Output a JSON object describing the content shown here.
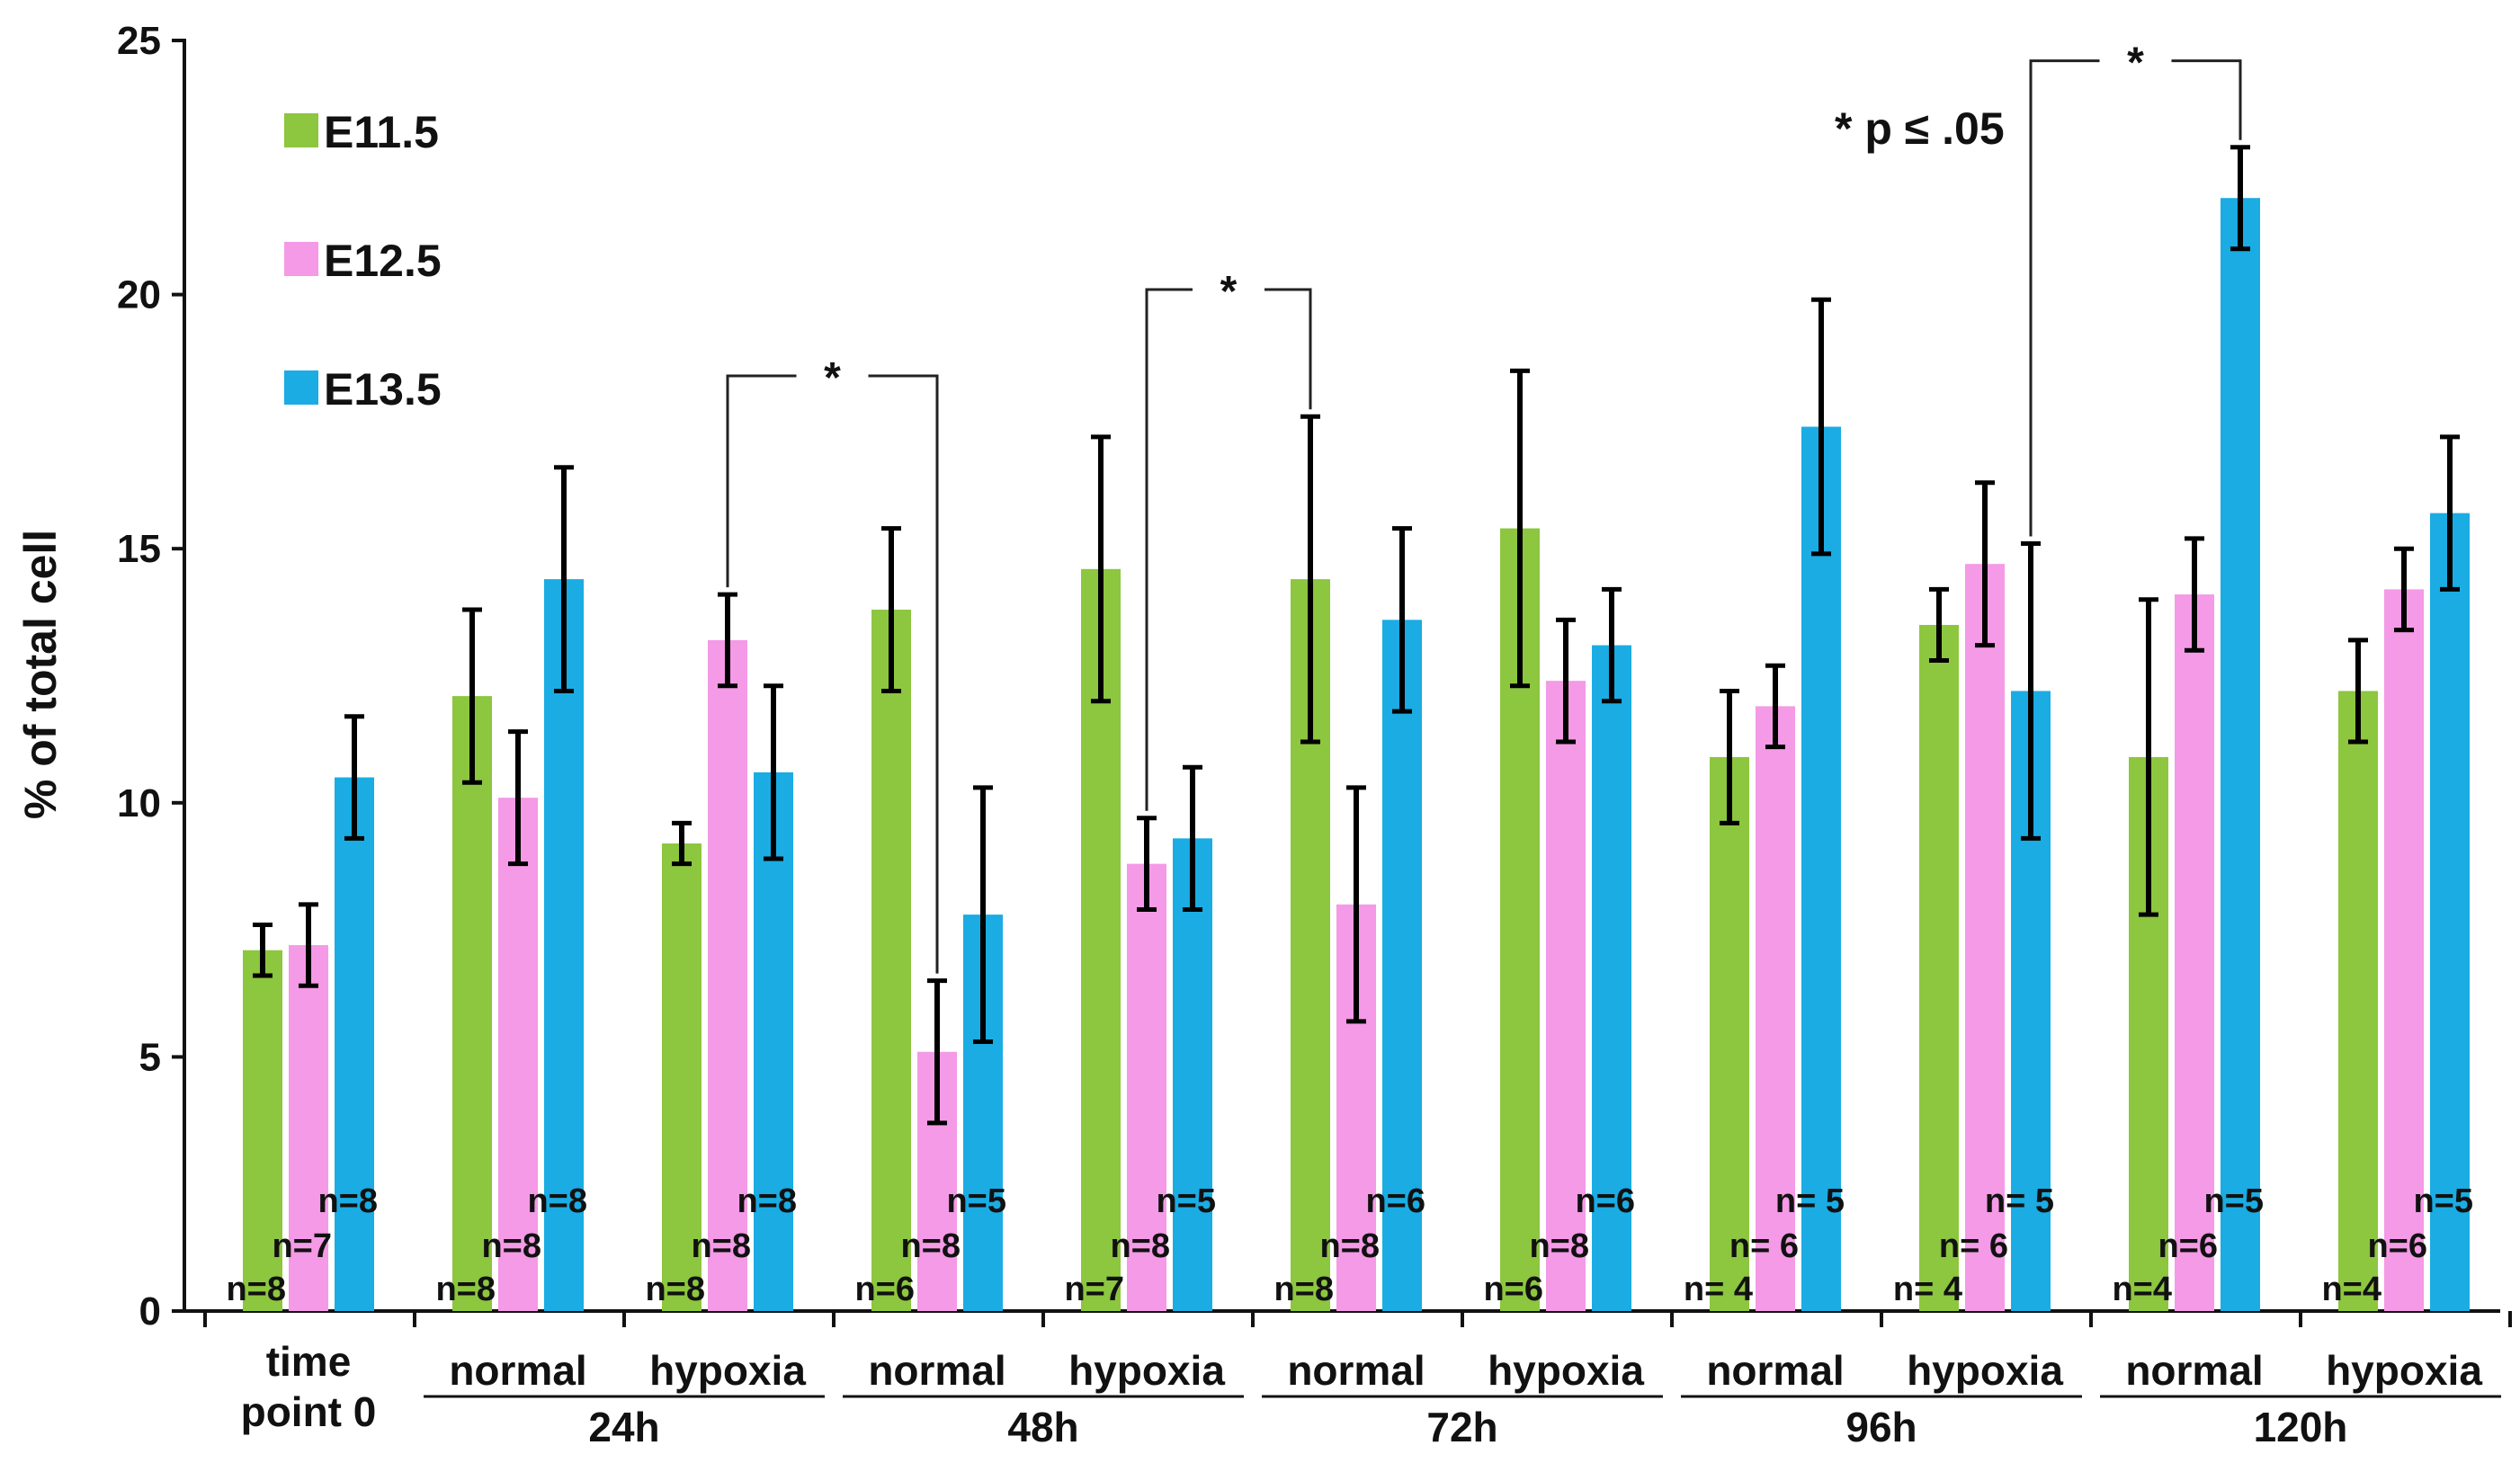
{
  "chart_data": {
    "type": "bar",
    "ylabel": "% of total cell",
    "ylim": [
      0,
      25
    ],
    "yticks": [
      "0",
      "5",
      "10",
      "15",
      "20",
      "25"
    ],
    "series_names": [
      "E11.5",
      "E12.5",
      "E13.5"
    ],
    "colors": {
      "E11.5": "#8dc63f",
      "E12.5": "#f49ae6",
      "E13.5": "#1aace3",
      "axis": "#111111"
    },
    "groups": [
      {
        "time": "",
        "conditions": [
          {
            "label_lines": [
              "time",
              "point 0"
            ],
            "values": [
              7.1,
              7.2,
              10.5
            ],
            "errors": [
              0.5,
              0.8,
              1.2
            ],
            "n": [
              "n=8",
              "n=7",
              "n=8"
            ]
          }
        ]
      },
      {
        "time": "24h",
        "conditions": [
          {
            "label_lines": [
              "normal"
            ],
            "values": [
              12.1,
              10.1,
              14.4
            ],
            "errors": [
              1.7,
              1.3,
              2.2
            ],
            "n": [
              "n=8",
              "n=8",
              "n=8"
            ]
          },
          {
            "label_lines": [
              "hypoxia"
            ],
            "values": [
              9.2,
              13.2,
              10.6
            ],
            "errors": [
              0.4,
              0.9,
              1.7
            ],
            "n": [
              "n=8",
              "n=8",
              "n=8"
            ]
          }
        ]
      },
      {
        "time": "48h",
        "conditions": [
          {
            "label_lines": [
              "normal"
            ],
            "values": [
              13.8,
              5.1,
              7.8
            ],
            "errors": [
              1.6,
              1.4,
              2.5
            ],
            "n": [
              "n=6",
              "n=8",
              "n=5"
            ]
          },
          {
            "label_lines": [
              "hypoxia"
            ],
            "values": [
              14.6,
              8.8,
              9.3
            ],
            "errors": [
              2.6,
              0.9,
              1.4
            ],
            "n": [
              "n=7",
              "n=8",
              "n=5"
            ]
          }
        ]
      },
      {
        "time": "72h",
        "conditions": [
          {
            "label_lines": [
              "normal"
            ],
            "values": [
              14.4,
              8.0,
              13.6
            ],
            "errors": [
              3.2,
              2.3,
              1.8
            ],
            "n": [
              "n=8",
              "n=8",
              "n=6"
            ]
          },
          {
            "label_lines": [
              "hypoxia"
            ],
            "values": [
              15.4,
              12.4,
              13.1
            ],
            "errors": [
              3.1,
              1.2,
              1.1
            ],
            "n": [
              "n=6",
              "n=8",
              "n=6"
            ]
          }
        ]
      },
      {
        "time": "96h",
        "conditions": [
          {
            "label_lines": [
              "normal"
            ],
            "values": [
              10.9,
              11.9,
              17.4
            ],
            "errors": [
              1.3,
              0.8,
              2.5
            ],
            "n": [
              "n= 4",
              "n= 6",
              "n= 5"
            ]
          },
          {
            "label_lines": [
              "hypoxia"
            ],
            "values": [
              13.5,
              14.7,
              12.2
            ],
            "errors": [
              0.7,
              1.6,
              2.9
            ],
            "n": [
              "n= 4",
              "n= 6",
              "n= 5"
            ]
          }
        ]
      },
      {
        "time": "120h",
        "conditions": [
          {
            "label_lines": [
              "normal"
            ],
            "values": [
              10.9,
              14.1,
              21.9
            ],
            "errors": [
              3.1,
              1.1,
              1.0
            ],
            "n": [
              "n=4",
              "n=6",
              "n=5"
            ]
          },
          {
            "label_lines": [
              "hypoxia"
            ],
            "values": [
              12.2,
              14.2,
              15.7
            ],
            "errors": [
              1.0,
              0.8,
              1.5
            ],
            "n": [
              "n=4",
              "n=6",
              "n=5"
            ]
          }
        ]
      }
    ],
    "significance": [
      {
        "label": "*",
        "from": {
          "condition": 3,
          "series": 1
        },
        "to": {
          "condition": 4,
          "series": 1
        },
        "y": 18.4
      },
      {
        "label": "*",
        "from": {
          "condition": 5,
          "series": 1
        },
        "to": {
          "condition": 6,
          "series": 0
        },
        "y": 20.1
      },
      {
        "label": "*",
        "from": {
          "condition": 9,
          "series": 2
        },
        "to": {
          "condition": 10,
          "series": 2
        },
        "y": 24.6
      }
    ],
    "annotation": "*  p ≤ .05"
  }
}
